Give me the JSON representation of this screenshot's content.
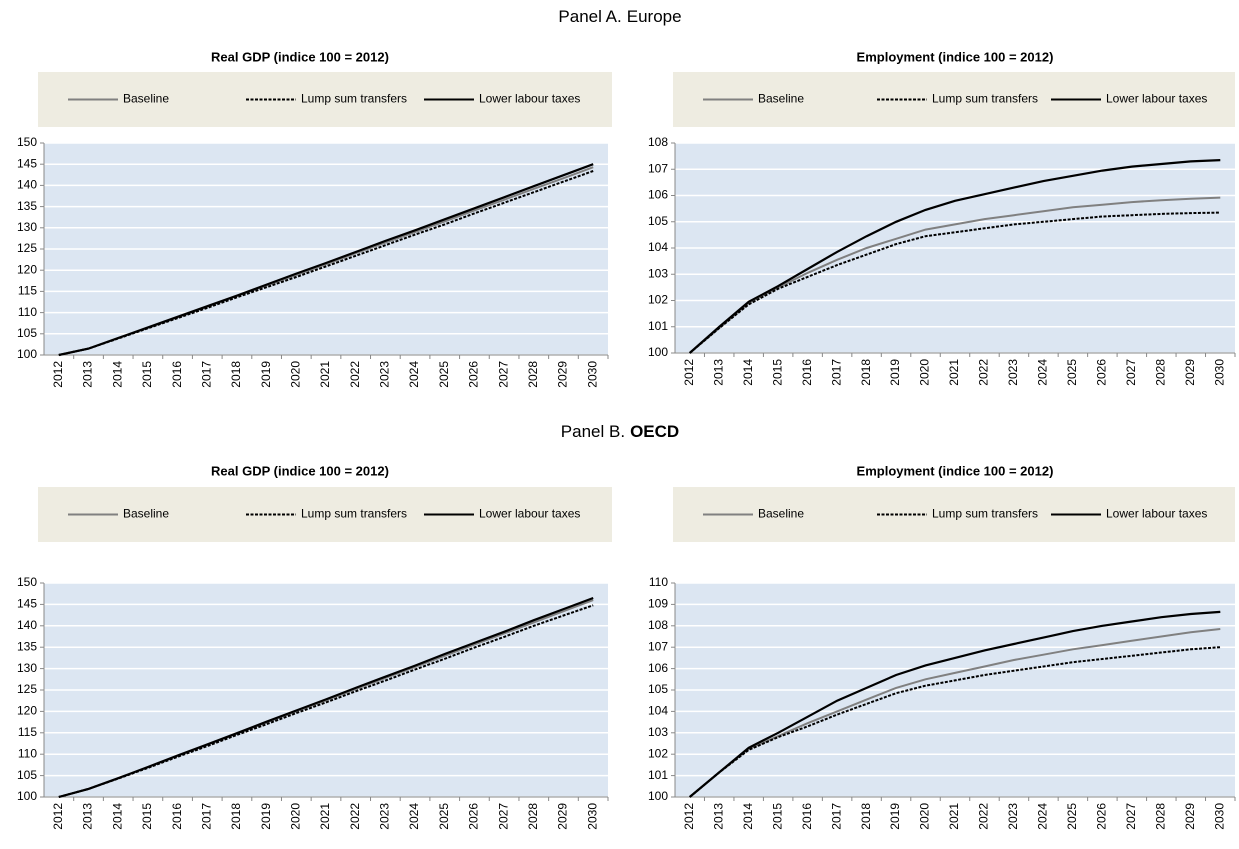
{
  "panels": [
    {
      "label": "Panel A.",
      "name": "Europe",
      "bold": false
    },
    {
      "label": "Panel B.",
      "name": "OECD",
      "bold": true
    }
  ],
  "chart_data": [
    {
      "type": "line",
      "title": "Real GDP (indice 100 = 2012)",
      "legend": "top",
      "categories": [
        "2012",
        "2013",
        "2014",
        "2015",
        "2016",
        "2017",
        "2018",
        "2019",
        "2020",
        "2021",
        "2022",
        "2023",
        "2024",
        "2025",
        "2026",
        "2027",
        "2028",
        "2029",
        "2030"
      ],
      "ylim": [
        100,
        150
      ],
      "yticks": [
        100,
        105,
        110,
        115,
        120,
        125,
        130,
        135,
        140,
        145,
        150
      ],
      "grid": true,
      "series": [
        {
          "name": "Baseline",
          "color": "#808080",
          "dash": "solid",
          "values": [
            100,
            101.5,
            104,
            106.4,
            108.9,
            111.4,
            113.9,
            116.4,
            118.9,
            121.4,
            124,
            126.5,
            129,
            131.5,
            134.1,
            136.6,
            139.2,
            141.7,
            144.3
          ]
        },
        {
          "name": "Lump sum transfers",
          "color": "#000000",
          "dash": "dashed",
          "values": [
            100,
            101.5,
            103.9,
            106.3,
            108.7,
            111.1,
            113.6,
            116,
            118.4,
            120.9,
            123.4,
            125.9,
            128.4,
            130.8,
            133.4,
            135.9,
            138.4,
            140.9,
            143.4
          ]
        },
        {
          "name": "Lower labour taxes",
          "color": "#000000",
          "dash": "solid",
          "values": [
            100,
            101.5,
            104,
            106.5,
            109,
            111.5,
            114,
            116.6,
            119.2,
            121.7,
            124.3,
            126.9,
            129.4,
            132,
            134.6,
            137.2,
            139.8,
            142.4,
            145
          ]
        }
      ]
    },
    {
      "type": "line",
      "title": "Employment (indice 100 = 2012)",
      "legend": "top",
      "categories": [
        "2012",
        "2013",
        "2014",
        "2015",
        "2016",
        "2017",
        "2018",
        "2019",
        "2020",
        "2021",
        "2022",
        "2023",
        "2024",
        "2025",
        "2026",
        "2027",
        "2028",
        "2029",
        "2030"
      ],
      "ylim": [
        100,
        108
      ],
      "yticks": [
        100,
        101,
        102,
        103,
        104,
        105,
        106,
        107,
        108
      ],
      "grid": true,
      "series": [
        {
          "name": "Baseline",
          "color": "#808080",
          "dash": "solid",
          "values": [
            100,
            100.95,
            101.9,
            102.5,
            103.05,
            103.55,
            104,
            104.35,
            104.7,
            104.9,
            105.1,
            105.25,
            105.4,
            105.55,
            105.65,
            105.75,
            105.82,
            105.88,
            105.92
          ]
        },
        {
          "name": "Lump sum transfers",
          "color": "#000000",
          "dash": "dashed",
          "values": [
            100,
            100.95,
            101.85,
            102.45,
            102.9,
            103.35,
            103.75,
            104.15,
            104.45,
            104.6,
            104.75,
            104.9,
            105,
            105.1,
            105.2,
            105.25,
            105.3,
            105.33,
            105.35
          ]
        },
        {
          "name": "Lower labour taxes",
          "color": "#000000",
          "dash": "solid",
          "values": [
            100,
            101,
            101.95,
            102.55,
            103.2,
            103.85,
            104.45,
            105,
            105.45,
            105.8,
            106.05,
            106.3,
            106.55,
            106.75,
            106.95,
            107.1,
            107.2,
            107.3,
            107.35
          ]
        }
      ]
    },
    {
      "type": "line",
      "title": "Real GDP (indice 100 = 2012)",
      "legend": "top",
      "categories": [
        "2012",
        "2013",
        "2014",
        "2015",
        "2016",
        "2017",
        "2018",
        "2019",
        "2020",
        "2021",
        "2022",
        "2023",
        "2024",
        "2025",
        "2026",
        "2027",
        "2028",
        "2029",
        "2030"
      ],
      "ylim": [
        100,
        150
      ],
      "yticks": [
        100,
        105,
        110,
        115,
        120,
        125,
        130,
        135,
        140,
        145,
        150
      ],
      "grid": true,
      "series": [
        {
          "name": "Baseline",
          "color": "#808080",
          "dash": "solid",
          "values": [
            100,
            101.9,
            104.4,
            107,
            109.6,
            112.2,
            114.8,
            117.4,
            120,
            122.6,
            125.2,
            127.8,
            130.4,
            133,
            135.6,
            138.2,
            140.8,
            143.4,
            146
          ]
        },
        {
          "name": "Lump sum transfers",
          "color": "#000000",
          "dash": "dashed",
          "values": [
            100,
            101.9,
            104.3,
            106.8,
            109.4,
            111.9,
            114.5,
            117,
            119.6,
            122.1,
            124.7,
            127.2,
            129.8,
            132.3,
            134.9,
            137.4,
            140,
            142.4,
            144.8
          ]
        },
        {
          "name": "Lower labour taxes",
          "color": "#000000",
          "dash": "solid",
          "values": [
            100,
            101.9,
            104.4,
            107,
            109.7,
            112.3,
            114.9,
            117.6,
            120.2,
            122.8,
            125.5,
            128.1,
            130.7,
            133.4,
            136,
            138.6,
            141.3,
            143.9,
            146.5
          ]
        }
      ]
    },
    {
      "type": "line",
      "title": "Employment (indice 100 = 2012)",
      "legend": "top",
      "categories": [
        "2012",
        "2013",
        "2014",
        "2015",
        "2016",
        "2017",
        "2018",
        "2019",
        "2020",
        "2021",
        "2022",
        "2023",
        "2024",
        "2025",
        "2026",
        "2027",
        "2028",
        "2029",
        "2030"
      ],
      "ylim": [
        100,
        110
      ],
      "yticks": [
        100,
        101,
        102,
        103,
        104,
        105,
        106,
        107,
        108,
        109,
        110
      ],
      "grid": true,
      "series": [
        {
          "name": "Baseline",
          "color": "#808080",
          "dash": "solid",
          "values": [
            100,
            101.15,
            102.25,
            102.85,
            103.45,
            104,
            104.55,
            105.1,
            105.5,
            105.8,
            106.1,
            106.4,
            106.65,
            106.9,
            107.1,
            107.3,
            107.5,
            107.7,
            107.85
          ]
        },
        {
          "name": "Lump sum transfers",
          "color": "#000000",
          "dash": "dashed",
          "values": [
            100,
            101.15,
            102.2,
            102.8,
            103.3,
            103.85,
            104.35,
            104.85,
            105.2,
            105.45,
            105.7,
            105.9,
            106.1,
            106.3,
            106.45,
            106.6,
            106.75,
            106.9,
            107
          ]
        },
        {
          "name": "Lower labour taxes",
          "color": "#000000",
          "dash": "solid",
          "values": [
            100,
            101.15,
            102.3,
            103,
            103.75,
            104.5,
            105.1,
            105.7,
            106.15,
            106.5,
            106.85,
            107.15,
            107.45,
            107.75,
            108,
            108.2,
            108.4,
            108.55,
            108.65
          ]
        }
      ]
    }
  ]
}
